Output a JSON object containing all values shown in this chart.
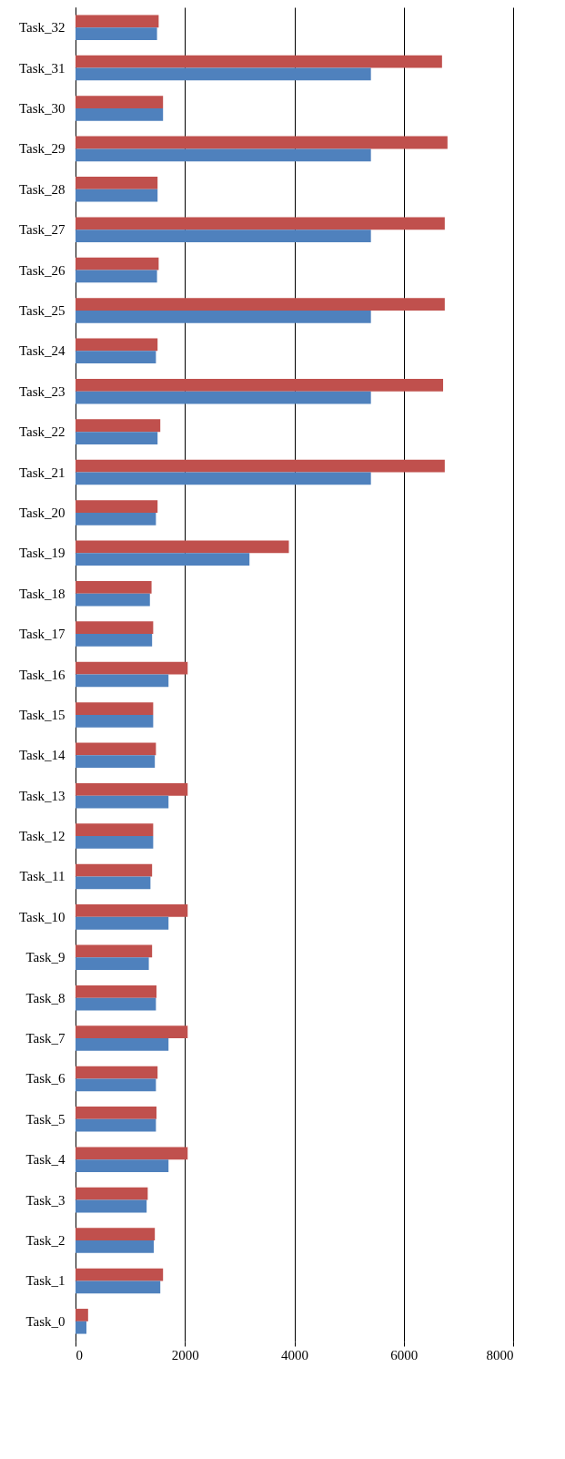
{
  "chart_data": {
    "type": "bar",
    "orientation": "horizontal",
    "categories": [
      "Task_32",
      "Task_31",
      "Task_30",
      "Task_29",
      "Task_28",
      "Task_27",
      "Task_26",
      "Task_25",
      "Task_24",
      "Task_23",
      "Task_22",
      "Task_21",
      "Task_20",
      "Task_19",
      "Task_18",
      "Task_17",
      "Task_16",
      "Task_15",
      "Task_14",
      "Task_13",
      "Task_12",
      "Task_11",
      "Task_10",
      "Task_9",
      "Task_8",
      "Task_7",
      "Task_6",
      "Task_5",
      "Task_4",
      "Task_3",
      "Task_2",
      "Task_1",
      "Task_0"
    ],
    "series": [
      {
        "color": "#c0504d",
        "values": [
          1520,
          6700,
          1600,
          6800,
          1500,
          6750,
          1520,
          6750,
          1500,
          6720,
          1550,
          6750,
          1500,
          3900,
          1390,
          1420,
          2050,
          1420,
          1470,
          2050,
          1420,
          1400,
          2050,
          1400,
          1480,
          2050,
          1500,
          1480,
          2050,
          1320,
          1450,
          1600,
          230
        ]
      },
      {
        "color": "#4f81bd",
        "values": [
          1490,
          5400,
          1600,
          5400,
          1500,
          5400,
          1490,
          5400,
          1470,
          5400,
          1500,
          5400,
          1470,
          3180,
          1360,
          1400,
          1700,
          1420,
          1450,
          1700,
          1420,
          1370,
          1700,
          1340,
          1470,
          1700,
          1470,
          1470,
          1700,
          1300,
          1430,
          1550,
          200
        ]
      }
    ],
    "xlim": [
      0,
      8000
    ],
    "xticks": [
      0,
      2000,
      4000,
      6000,
      8000
    ],
    "grid": "x"
  }
}
